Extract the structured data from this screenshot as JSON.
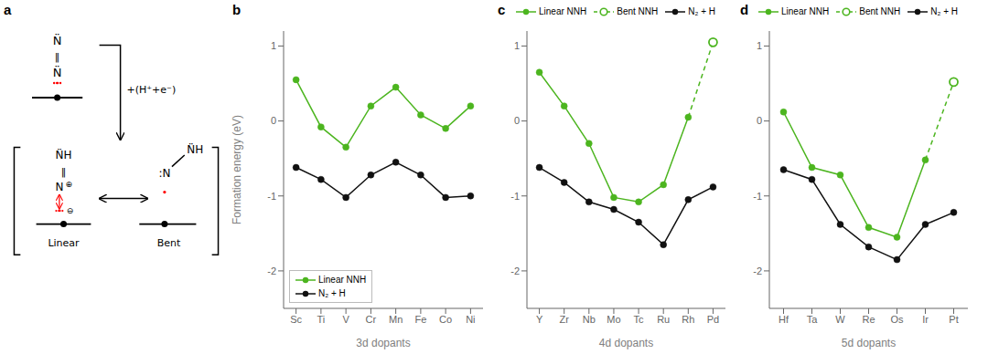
{
  "chart_data": [
    {
      "type": "diagram",
      "title": "a",
      "annotations": [
        "N̈",
        "‖",
        "N̈",
        "+(H⁺+e⁻)",
        "N̈H",
        "‖",
        "N",
        "⊕",
        "⊖",
        "Linear",
        ":N",
        "N̈H",
        "Bent"
      ]
    },
    {
      "type": "line",
      "title": "b",
      "categories": [
        "Sc",
        "Ti",
        "V",
        "Cr",
        "Mn",
        "Fe",
        "Co",
        "Ni"
      ],
      "series": [
        {
          "name": "Linear NNH",
          "color": "#4cb51f",
          "marker": "circle",
          "line_style": "solid",
          "values": [
            0.55,
            -0.08,
            -0.35,
            0.2,
            0.45,
            0.08,
            -0.1,
            0.2
          ]
        },
        {
          "name": "N₂ + H",
          "color": "#111111",
          "marker": "circle",
          "line_style": "solid",
          "values": [
            -0.62,
            -0.78,
            -1.02,
            -0.72,
            -0.55,
            -0.72,
            -1.02,
            -1.0
          ]
        }
      ],
      "xlabel": "3d dopants",
      "ylabel": "Formation energy (eV)",
      "ylim": [
        -2.5,
        1.2
      ],
      "yticks": [
        -2,
        -1,
        0,
        1
      ],
      "grid": false,
      "legend": "lower left"
    },
    {
      "type": "line",
      "title": "c",
      "categories": [
        "Y",
        "Zr",
        "Nb",
        "Mo",
        "Tc",
        "Ru",
        "Rh",
        "Pd"
      ],
      "series": [
        {
          "name": "Linear NNH",
          "color": "#4cb51f",
          "marker": "circle",
          "line_style": "solid",
          "values": [
            0.65,
            0.2,
            -0.3,
            -1.02,
            -1.08,
            -0.85,
            0.05,
            null
          ]
        },
        {
          "name": "Bent NNH",
          "color": "#4cb51f",
          "marker": "open_circle",
          "line_style": "dashed",
          "values": [
            null,
            null,
            null,
            null,
            null,
            null,
            0.05,
            1.05
          ]
        },
        {
          "name": "N₂ + H",
          "color": "#111111",
          "marker": "circle",
          "line_style": "solid",
          "values": [
            -0.62,
            -0.82,
            -1.08,
            -1.18,
            -1.35,
            -1.65,
            -1.05,
            -0.88
          ]
        }
      ],
      "xlabel": "4d dopants",
      "ylim": [
        -2.5,
        1.2
      ],
      "yticks": [
        -2,
        -1,
        0,
        1
      ],
      "grid": false,
      "legend": "top"
    },
    {
      "type": "line",
      "title": "d",
      "categories": [
        "Hf",
        "Ta",
        "W",
        "Re",
        "Os",
        "Ir",
        "Pt"
      ],
      "series": [
        {
          "name": "Linear NNH",
          "color": "#4cb51f",
          "marker": "circle",
          "line_style": "solid",
          "values": [
            0.12,
            -0.62,
            -0.72,
            -1.42,
            -1.55,
            -0.52,
            null
          ]
        },
        {
          "name": "Bent NNH",
          "color": "#4cb51f",
          "marker": "open_circle",
          "line_style": "dashed",
          "values": [
            null,
            null,
            null,
            null,
            null,
            -0.52,
            0.52
          ]
        },
        {
          "name": "N₂ + H",
          "color": "#111111",
          "marker": "circle",
          "line_style": "solid",
          "values": [
            -0.65,
            -0.78,
            -1.38,
            -1.68,
            -1.85,
            -1.38,
            -1.22
          ]
        }
      ],
      "xlabel": "5d dopants",
      "ylim": [
        -2.5,
        1.2
      ],
      "yticks": [
        -2,
        -1,
        0,
        1
      ],
      "grid": false,
      "legend": "top"
    }
  ]
}
